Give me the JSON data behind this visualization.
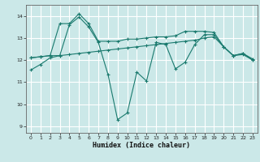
{
  "xlabel": "Humidex (Indice chaleur)",
  "bg_color": "#cbe8e8",
  "grid_color": "#ffffff",
  "line_color": "#1a7a6e",
  "xlim": [
    -0.5,
    23.5
  ],
  "ylim": [
    8.7,
    14.5
  ],
  "yticks": [
    9,
    10,
    11,
    12,
    13,
    14
  ],
  "xticks": [
    0,
    1,
    2,
    3,
    4,
    5,
    6,
    7,
    8,
    9,
    10,
    11,
    12,
    13,
    14,
    15,
    16,
    17,
    18,
    19,
    20,
    21,
    22,
    23
  ],
  "series1_x": [
    0,
    1,
    2,
    3,
    4,
    5,
    6,
    7,
    8,
    9,
    10,
    11,
    12,
    13,
    14,
    15,
    16,
    17,
    18,
    19,
    20,
    21,
    22,
    23
  ],
  "series1_y": [
    11.55,
    11.8,
    12.1,
    12.2,
    13.6,
    13.95,
    13.5,
    12.8,
    11.35,
    9.3,
    9.6,
    11.45,
    11.05,
    12.8,
    12.7,
    11.6,
    11.9,
    12.7,
    13.15,
    13.15,
    12.6,
    12.2,
    12.3,
    12.0
  ],
  "series2_x": [
    0,
    1,
    2,
    3,
    4,
    5,
    6,
    7,
    8,
    9,
    10,
    11,
    12,
    13,
    14,
    15,
    16,
    17,
    18,
    19,
    20,
    21,
    22,
    23
  ],
  "series2_y": [
    12.1,
    12.15,
    12.2,
    13.65,
    13.65,
    14.1,
    13.65,
    12.85,
    12.85,
    12.85,
    12.95,
    12.95,
    13.0,
    13.05,
    13.05,
    13.1,
    13.3,
    13.3,
    13.3,
    13.25,
    12.6,
    12.2,
    12.3,
    12.05
  ],
  "series3_x": [
    0,
    1,
    2,
    3,
    4,
    5,
    6,
    7,
    8,
    9,
    10,
    11,
    12,
    13,
    14,
    15,
    16,
    17,
    18,
    19,
    20,
    21,
    22,
    23
  ],
  "series3_y": [
    12.1,
    12.15,
    12.2,
    12.2,
    12.25,
    12.3,
    12.35,
    12.4,
    12.45,
    12.5,
    12.55,
    12.6,
    12.65,
    12.7,
    12.75,
    12.8,
    12.85,
    12.9,
    13.0,
    13.05,
    12.6,
    12.2,
    12.25,
    12.0
  ]
}
